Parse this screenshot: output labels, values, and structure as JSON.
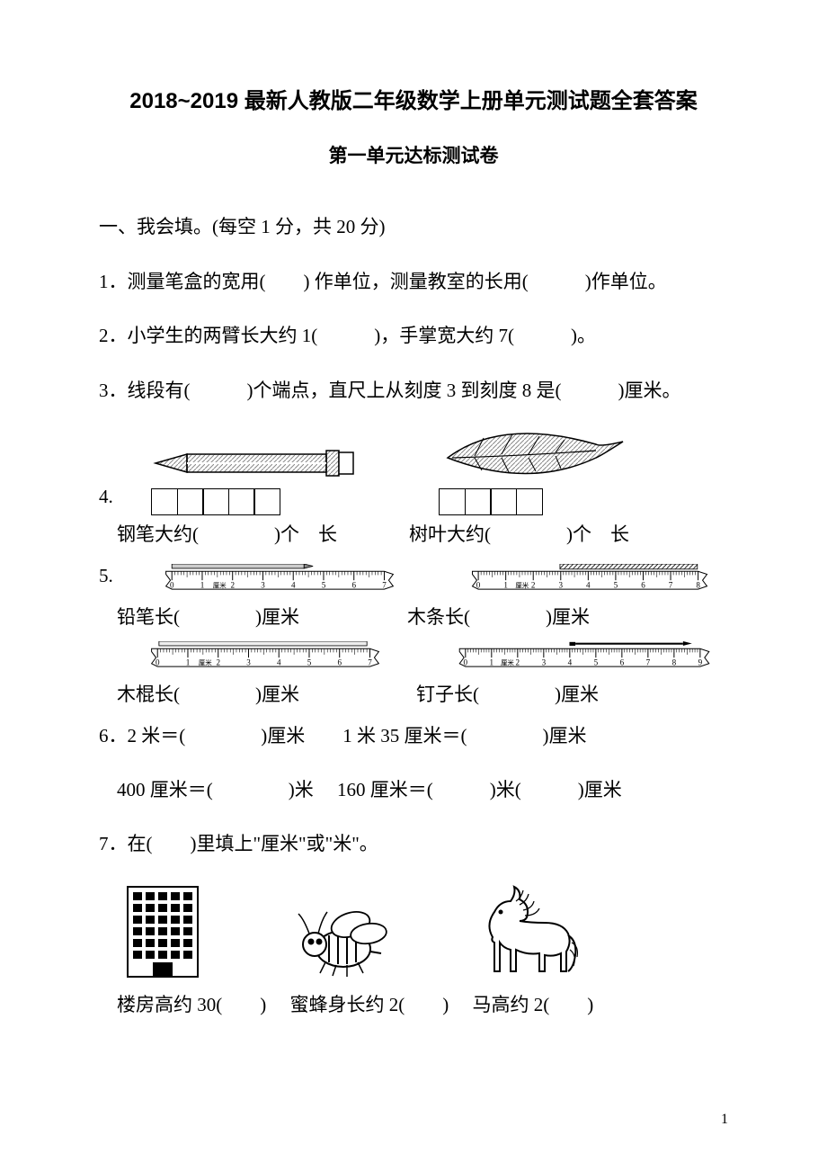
{
  "title": "2018~2019 最新人教版二年级数学上册单元测试题全套答案",
  "subtitle": "第一单元达标测试卷",
  "section1": {
    "header": "一、我会填。(每空 1 分，共 20 分)",
    "q1": "1．测量笔盒的宽用(　　) 作单位，测量教室的长用(　　　)作单位。",
    "q2": "2．小学生的两臂长大约 1(　　　)，手掌宽大约 7(　　　)。",
    "q3": "3．线段有(　　　)个端点，直尺上从刻度 3 到刻度 8 是(　　　)厘米。",
    "q4": {
      "prefix": "4.",
      "pen_label": "钢笔大约(　　　　)个　长",
      "leaf_label": "树叶大约(　　　　)个　长",
      "pen_boxes": 5,
      "leaf_boxes": 4
    },
    "q5": {
      "prefix": "5.",
      "pencil_label": "铅笔长(　　　　)厘米",
      "wood_label": "木条长(　　　　)厘米",
      "stick_label": "木棍长(　　　　)厘米",
      "nail_label": "钉子长(　　　　)厘米",
      "ruler7_max": 7,
      "ruler8_max": 8,
      "ruler9_max": 9,
      "cm_label": "1厘米"
    },
    "q6_line1": "6．2 米＝(　　　　)厘米　　1 米 35 厘米＝(　　　　)厘米",
    "q6_line2": "400 厘米＝(　　　　)米　 160 厘米＝(　　　)米(　　　)厘米",
    "q7": "7．在(　　)里填上\"厘米\"或\"米\"。",
    "q7_labels": "楼房高约 30(　　)　 蜜蜂身长约 2(　　)　 马高约 2(　　)"
  },
  "page_number": "1",
  "colors": {
    "text": "#000000",
    "bg": "#ffffff",
    "hatch": "#888888"
  }
}
